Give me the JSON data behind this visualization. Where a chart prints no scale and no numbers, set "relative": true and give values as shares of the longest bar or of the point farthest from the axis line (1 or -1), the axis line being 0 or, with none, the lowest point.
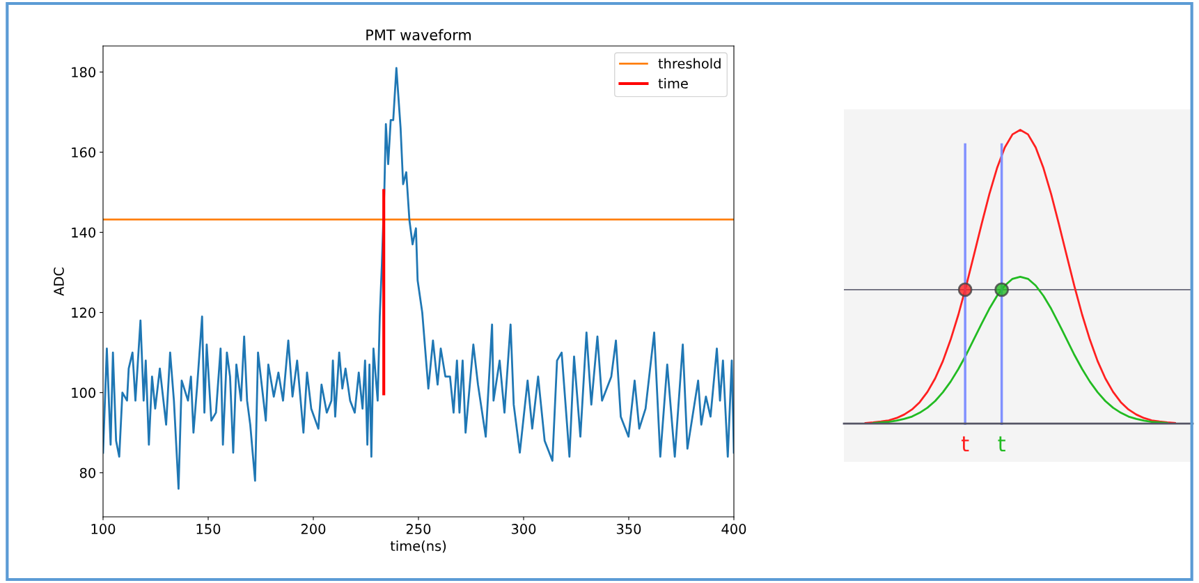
{
  "chart_data": [
    {
      "type": "line",
      "title": "PMT waveform",
      "xlabel": "time(ns)",
      "ylabel": "ADC",
      "xlim": [
        100,
        400
      ],
      "xticks": [
        100,
        150,
        200,
        250,
        300,
        350,
        400
      ],
      "ylim": [
        69,
        186.5
      ],
      "yticks": [
        80,
        100,
        120,
        140,
        160,
        180
      ],
      "grid": false,
      "legend": "top right",
      "series": [
        {
          "color": "#1f77b4",
          "x": [
            100,
            101.8,
            103.6,
            104.7,
            106.2,
            107.7,
            109.2,
            111.4,
            112.2,
            114,
            115.4,
            117.8,
            119.3,
            120.3,
            121.8,
            123.3,
            124.8,
            127,
            130,
            131.9,
            133.7,
            135.9,
            137.4,
            140.4,
            141.8,
            143,
            144.8,
            147.1,
            148.2,
            149.3,
            151.5,
            153.7,
            155.9,
            157,
            158.9,
            160.4,
            161.9,
            163.4,
            165.6,
            167.1,
            168.5,
            170,
            172.3,
            173.7,
            177.4,
            178.6,
            181.2,
            183.4,
            185.6,
            188.1,
            190.1,
            192.3,
            195.3,
            197,
            199,
            202.4,
            203.9,
            206.4,
            208.6,
            209.3,
            210.4,
            212.3,
            213.8,
            215.3,
            217.5,
            219.7,
            221.6,
            223.4,
            224.6,
            225.7,
            226.7,
            227.6,
            228.6,
            230.6,
            231.6,
            232.6,
            233.8,
            234.5,
            235.6,
            236.8,
            238,
            239.5,
            241.5,
            242.7,
            244.2,
            245.7,
            247.2,
            248.8,
            249.6,
            251.8,
            254.7,
            256.9,
            259.1,
            260.6,
            262.8,
            265,
            266.7,
            268.3,
            269.5,
            271,
            272.4,
            276.1,
            278.3,
            282,
            285,
            285.7,
            288.6,
            290.9,
            293.8,
            295.3,
            298.2,
            301.9,
            304.1,
            306.9,
            310,
            313.7,
            315.9,
            318.1,
            321.8,
            324,
            327,
            329.9,
            332.2,
            335.1,
            337.3,
            341.7,
            343.9,
            346.2,
            349.9,
            352.8,
            355,
            358,
            362.1,
            365,
            368.3,
            371.9,
            375.7,
            377.9,
            383,
            384.5,
            386.7,
            388.9,
            391.9,
            393.4,
            394.8,
            397.1,
            399,
            400
          ],
          "values": [
            85,
            111,
            87,
            110,
            88,
            84,
            100,
            98,
            106,
            110,
            98,
            118,
            98,
            108,
            87,
            104,
            96,
            106,
            92,
            110,
            98,
            76,
            103,
            98,
            104,
            90,
            102,
            119,
            95,
            112,
            93,
            95,
            111,
            87,
            110,
            104,
            85,
            107,
            98,
            114,
            98,
            92,
            78,
            110,
            93,
            107,
            99,
            105,
            98,
            113,
            99,
            108,
            90,
            105,
            96,
            91,
            102,
            95,
            98,
            108,
            94,
            110,
            101,
            106,
            98,
            95,
            105,
            96,
            108,
            87,
            107,
            84,
            111,
            98,
            119,
            132,
            151,
            167,
            157,
            168,
            168,
            181,
            166,
            152,
            155,
            143,
            137,
            141,
            128,
            120,
            101,
            113,
            102,
            111,
            104,
            104,
            95,
            108,
            95,
            108,
            90,
            112,
            102,
            89,
            117,
            98,
            108,
            95,
            117,
            97,
            85,
            103,
            91,
            104,
            88,
            83,
            108,
            110,
            84,
            109,
            89,
            115,
            97,
            114,
            98,
            104,
            113,
            94,
            89,
            103,
            91,
            96,
            115,
            84,
            107,
            84,
            112,
            86,
            103,
            92,
            99,
            94,
            111,
            98,
            108,
            84,
            108,
            85
          ]
        },
        {
          "name": "time",
          "color": "#ff0000",
          "x": [
            233.5,
            233.5
          ],
          "values": [
            99.7,
            150.4
          ]
        }
      ],
      "ref_lines": [
        {
          "axis": "y",
          "value": 143.2,
          "label": "threshold",
          "color": "#ff7f0e"
        }
      ]
    },
    {
      "type": "line",
      "relative": true,
      "categories": [
        null,
        null,
        null,
        null,
        null,
        null,
        null,
        null,
        null,
        null,
        null,
        null,
        null,
        null,
        null,
        null,
        null,
        null,
        null,
        null,
        null,
        null,
        null,
        null,
        null,
        null,
        null,
        null,
        null,
        null,
        null,
        null,
        null,
        null,
        null,
        null,
        null,
        null,
        null,
        null,
        null
      ],
      "series": [
        {
          "color": "#ff2020",
          "values": [
            0.002,
            0.004,
            0.007,
            0.011,
            0.019,
            0.031,
            0.048,
            0.073,
            0.108,
            0.154,
            0.213,
            0.286,
            0.371,
            0.468,
            0.573,
            0.679,
            0.781,
            0.87,
            0.94,
            0.985,
            1,
            0.985,
            0.94,
            0.87,
            0.781,
            0.679,
            0.573,
            0.468,
            0.371,
            0.286,
            0.213,
            0.154,
            0.108,
            0.073,
            0.048,
            0.031,
            0.019,
            0.011,
            0.007,
            0.004,
            0.002
          ]
        },
        {
          "color": "#22bb22",
          "values": [
            null,
            0.002,
            0.004,
            0.006,
            0.01,
            0.016,
            0.024,
            0.037,
            0.054,
            0.077,
            0.107,
            0.143,
            0.186,
            0.234,
            0.287,
            0.34,
            0.391,
            0.435,
            0.47,
            0.493,
            0.5,
            0.493,
            0.47,
            0.435,
            0.391,
            0.34,
            0.287,
            0.234,
            0.186,
            0.143,
            0.107,
            0.077,
            0.054,
            0.037,
            0.024,
            0.016,
            0.01,
            0.006,
            0.004,
            0.002,
            null
          ]
        }
      ],
      "ref_lines": [
        {
          "axis": "y",
          "value": 0.456,
          "color": "#666677"
        }
      ],
      "annotations": [
        "t",
        "t"
      ]
    }
  ]
}
